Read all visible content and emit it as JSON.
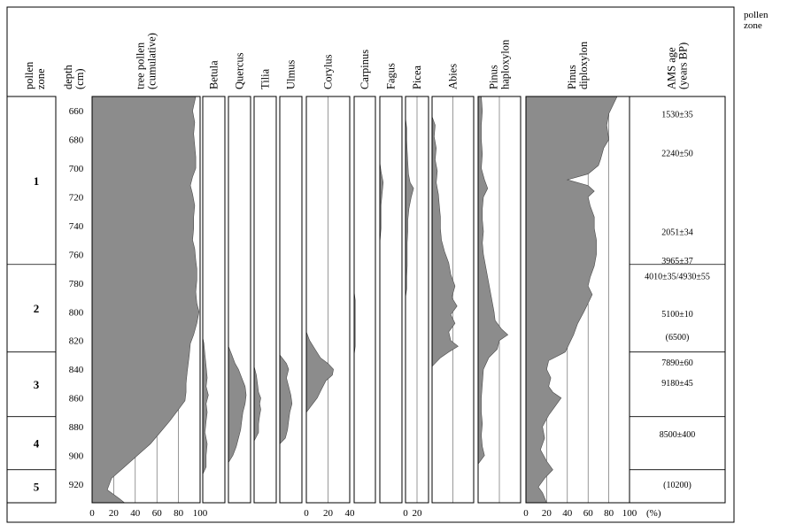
{
  "side_legend": [
    "pollen",
    "zone"
  ],
  "headers": {
    "zone": [
      "pollen",
      "zone"
    ],
    "depth": [
      "depth",
      "(cm)"
    ],
    "age": [
      "AMS age",
      "(years BP)"
    ]
  },
  "percent_unit": "(%)",
  "chart_data": {
    "type": "area",
    "title": "",
    "y_label": "depth (cm)",
    "x_unit": "%",
    "depth_range": [
      650,
      933
    ],
    "depth_ticks": [
      660,
      680,
      700,
      720,
      740,
      760,
      780,
      800,
      820,
      840,
      860,
      880,
      900,
      920
    ],
    "zones": [
      {
        "label": "1",
        "top": 650,
        "bottom": 767
      },
      {
        "label": "2",
        "top": 767,
        "bottom": 828
      },
      {
        "label": "3",
        "top": 828,
        "bottom": 873
      },
      {
        "label": "4",
        "top": 873,
        "bottom": 910
      },
      {
        "label": "5",
        "top": 910,
        "bottom": 933
      }
    ],
    "ams_ages": [
      {
        "label": "1530±35",
        "depth": 662
      },
      {
        "label": "2240±50",
        "depth": 689
      },
      {
        "label": "2051±34",
        "depth": 744
      },
      {
        "label": "3965±37",
        "depth": 764
      },
      {
        "label": "4010±35/4930±55",
        "depth": 775
      },
      {
        "label": "5100±10",
        "depth": 801
      },
      {
        "label": "(6500)",
        "depth": 817
      },
      {
        "label": "7890±60",
        "depth": 835
      },
      {
        "label": "9180±45",
        "depth": 849
      },
      {
        "label": "8500±400",
        "depth": 885
      },
      {
        "label": "(10200)",
        "depth": 920
      }
    ],
    "panels": [
      {
        "name": "tree pollen (cumulative)",
        "lines": [
          "tree pollen",
          "(cumulative)"
        ],
        "max": 100,
        "ticks": [
          0,
          20,
          40,
          60,
          80,
          100
        ],
        "grid": [
          20,
          40,
          60,
          80
        ],
        "points": [
          [
            650,
            96
          ],
          [
            660,
            93
          ],
          [
            668,
            95
          ],
          [
            676,
            94
          ],
          [
            684,
            95
          ],
          [
            692,
            96
          ],
          [
            700,
            96
          ],
          [
            706,
            93
          ],
          [
            712,
            91
          ],
          [
            718,
            93
          ],
          [
            726,
            95
          ],
          [
            734,
            94
          ],
          [
            742,
            94
          ],
          [
            750,
            93
          ],
          [
            756,
            95
          ],
          [
            764,
            96
          ],
          [
            770,
            97
          ],
          [
            778,
            97
          ],
          [
            786,
            96
          ],
          [
            794,
            97
          ],
          [
            800,
            99
          ],
          [
            808,
            97
          ],
          [
            816,
            94
          ],
          [
            822,
            91
          ],
          [
            830,
            90
          ],
          [
            836,
            89
          ],
          [
            842,
            88
          ],
          [
            850,
            87
          ],
          [
            856,
            87
          ],
          [
            862,
            86
          ],
          [
            868,
            80
          ],
          [
            876,
            72
          ],
          [
            884,
            63
          ],
          [
            892,
            54
          ],
          [
            900,
            42
          ],
          [
            908,
            30
          ],
          [
            916,
            18
          ],
          [
            924,
            14
          ],
          [
            930,
            25
          ],
          [
            933,
            30
          ]
        ]
      },
      {
        "name": "Betula",
        "lines": [
          "Betula"
        ],
        "max": 20,
        "ticks": [],
        "grid": [],
        "points": [
          [
            818,
            0
          ],
          [
            822,
            1
          ],
          [
            830,
            2
          ],
          [
            838,
            3
          ],
          [
            846,
            4
          ],
          [
            852,
            3
          ],
          [
            858,
            5
          ],
          [
            864,
            3
          ],
          [
            870,
            4
          ],
          [
            876,
            3
          ],
          [
            884,
            2
          ],
          [
            892,
            4
          ],
          [
            900,
            3
          ],
          [
            908,
            3
          ],
          [
            913,
            0
          ]
        ]
      },
      {
        "name": "Quercus",
        "lines": [
          "Quercus"
        ],
        "max": 20,
        "ticks": [],
        "grid": [],
        "points": [
          [
            824,
            0
          ],
          [
            830,
            3
          ],
          [
            836,
            6
          ],
          [
            840,
            9
          ],
          [
            846,
            12
          ],
          [
            852,
            15
          ],
          [
            858,
            16
          ],
          [
            864,
            15
          ],
          [
            870,
            13
          ],
          [
            876,
            12
          ],
          [
            882,
            11
          ],
          [
            888,
            9
          ],
          [
            894,
            7
          ],
          [
            900,
            4
          ],
          [
            905,
            0
          ]
        ]
      },
      {
        "name": "Tilia",
        "lines": [
          "Tilia"
        ],
        "max": 20,
        "ticks": [],
        "grid": [],
        "points": [
          [
            838,
            0
          ],
          [
            844,
            2
          ],
          [
            850,
            3
          ],
          [
            856,
            4
          ],
          [
            860,
            6
          ],
          [
            864,
            5
          ],
          [
            868,
            6
          ],
          [
            872,
            5
          ],
          [
            878,
            4
          ],
          [
            884,
            4
          ],
          [
            890,
            0
          ]
        ]
      },
      {
        "name": "Ulmus",
        "lines": [
          "Ulmus"
        ],
        "max": 20,
        "ticks": [],
        "grid": [],
        "points": [
          [
            830,
            0
          ],
          [
            836,
            6
          ],
          [
            840,
            8
          ],
          [
            846,
            6
          ],
          [
            852,
            8
          ],
          [
            858,
            10
          ],
          [
            864,
            11
          ],
          [
            870,
            9
          ],
          [
            876,
            8
          ],
          [
            882,
            7
          ],
          [
            888,
            5
          ],
          [
            892,
            0
          ]
        ]
      },
      {
        "name": "Corylus",
        "lines": [
          "Corylus"
        ],
        "max": 40,
        "ticks": [
          0,
          20,
          40
        ],
        "grid": [
          20
        ],
        "points": [
          [
            814,
            0
          ],
          [
            820,
            3
          ],
          [
            826,
            8
          ],
          [
            832,
            13
          ],
          [
            836,
            20
          ],
          [
            840,
            25
          ],
          [
            844,
            24
          ],
          [
            848,
            18
          ],
          [
            854,
            14
          ],
          [
            860,
            10
          ],
          [
            866,
            4
          ],
          [
            870,
            0
          ]
        ]
      },
      {
        "name": "Carpinus",
        "lines": [
          "Carpinus"
        ],
        "max": 20,
        "ticks": [],
        "grid": [],
        "points": [
          [
            786,
            0
          ],
          [
            792,
            1
          ],
          [
            800,
            1
          ],
          [
            808,
            1
          ],
          [
            816,
            1
          ],
          [
            824,
            1
          ],
          [
            830,
            0
          ]
        ]
      },
      {
        "name": "Fagus",
        "lines": [
          "Fagus"
        ],
        "max": 20,
        "ticks": [],
        "grid": [],
        "points": [
          [
            696,
            0
          ],
          [
            702,
            1
          ],
          [
            710,
            3
          ],
          [
            718,
            2
          ],
          [
            726,
            1
          ],
          [
            734,
            1
          ],
          [
            742,
            1
          ],
          [
            752,
            0
          ]
        ]
      },
      {
        "name": "Picea",
        "lines": [
          "Picea"
        ],
        "max": 40,
        "ticks": [
          0,
          20
        ],
        "grid": [
          20
        ],
        "points": [
          [
            665,
            0
          ],
          [
            672,
            2
          ],
          [
            680,
            2
          ],
          [
            688,
            3
          ],
          [
            696,
            4
          ],
          [
            704,
            5
          ],
          [
            710,
            8
          ],
          [
            714,
            14
          ],
          [
            720,
            10
          ],
          [
            728,
            6
          ],
          [
            736,
            4
          ],
          [
            744,
            4
          ],
          [
            752,
            3
          ],
          [
            760,
            3
          ],
          [
            768,
            3
          ],
          [
            776,
            2
          ],
          [
            784,
            2
          ],
          [
            790,
            0
          ]
        ]
      },
      {
        "name": "Abies",
        "lines": [
          "Abies"
        ],
        "max": 40,
        "ticks": [],
        "grid": [
          20
        ],
        "points": [
          [
            664,
            0
          ],
          [
            670,
            3
          ],
          [
            678,
            2
          ],
          [
            686,
            4
          ],
          [
            694,
            3
          ],
          [
            702,
            5
          ],
          [
            710,
            4
          ],
          [
            718,
            6
          ],
          [
            726,
            7
          ],
          [
            734,
            8
          ],
          [
            742,
            8
          ],
          [
            750,
            9
          ],
          [
            758,
            12
          ],
          [
            766,
            16
          ],
          [
            774,
            18
          ],
          [
            782,
            22
          ],
          [
            790,
            19
          ],
          [
            796,
            24
          ],
          [
            802,
            18
          ],
          [
            808,
            22
          ],
          [
            814,
            16
          ],
          [
            820,
            18
          ],
          [
            824,
            25
          ],
          [
            828,
            16
          ],
          [
            832,
            8
          ],
          [
            838,
            0
          ]
        ]
      },
      {
        "name": "Pinus haploxylon",
        "lines": [
          "Pinus",
          "haploxylon"
        ],
        "max": 40,
        "ticks": [],
        "grid": [
          20
        ],
        "points": [
          [
            650,
            3
          ],
          [
            660,
            4
          ],
          [
            670,
            3
          ],
          [
            680,
            3
          ],
          [
            690,
            4
          ],
          [
            700,
            3
          ],
          [
            708,
            6
          ],
          [
            714,
            9
          ],
          [
            720,
            5
          ],
          [
            728,
            4
          ],
          [
            736,
            4
          ],
          [
            744,
            5
          ],
          [
            752,
            4
          ],
          [
            760,
            5
          ],
          [
            768,
            7
          ],
          [
            776,
            9
          ],
          [
            784,
            11
          ],
          [
            792,
            13
          ],
          [
            800,
            15
          ],
          [
            806,
            16
          ],
          [
            812,
            22
          ],
          [
            816,
            28
          ],
          [
            820,
            20
          ],
          [
            826,
            18
          ],
          [
            832,
            10
          ],
          [
            840,
            5
          ],
          [
            850,
            4
          ],
          [
            860,
            3
          ],
          [
            870,
            3
          ],
          [
            878,
            4
          ],
          [
            886,
            3
          ],
          [
            894,
            4
          ],
          [
            900,
            6
          ],
          [
            906,
            0
          ]
        ]
      },
      {
        "name": "Pinus diploxylon",
        "lines": [
          "Pinus",
          "diploxylon"
        ],
        "max": 100,
        "ticks": [
          0,
          20,
          40,
          60,
          80,
          100
        ],
        "grid": [
          20,
          40,
          60,
          80
        ],
        "points": [
          [
            650,
            88
          ],
          [
            656,
            84
          ],
          [
            662,
            80
          ],
          [
            670,
            78
          ],
          [
            680,
            80
          ],
          [
            686,
            75
          ],
          [
            694,
            72
          ],
          [
            698,
            70
          ],
          [
            704,
            60
          ],
          [
            708,
            40
          ],
          [
            712,
            60
          ],
          [
            716,
            66
          ],
          [
            720,
            60
          ],
          [
            726,
            62
          ],
          [
            734,
            66
          ],
          [
            742,
            66
          ],
          [
            750,
            68
          ],
          [
            760,
            68
          ],
          [
            768,
            66
          ],
          [
            776,
            62
          ],
          [
            782,
            60
          ],
          [
            788,
            64
          ],
          [
            794,
            60
          ],
          [
            800,
            56
          ],
          [
            808,
            50
          ],
          [
            816,
            46
          ],
          [
            822,
            42
          ],
          [
            828,
            38
          ],
          [
            834,
            22
          ],
          [
            840,
            20
          ],
          [
            846,
            24
          ],
          [
            852,
            22
          ],
          [
            856,
            26
          ],
          [
            860,
            34
          ],
          [
            866,
            28
          ],
          [
            872,
            22
          ],
          [
            880,
            16
          ],
          [
            888,
            18
          ],
          [
            896,
            14
          ],
          [
            904,
            20
          ],
          [
            910,
            26
          ],
          [
            916,
            18
          ],
          [
            922,
            12
          ],
          [
            926,
            16
          ],
          [
            933,
            20
          ]
        ]
      }
    ]
  }
}
